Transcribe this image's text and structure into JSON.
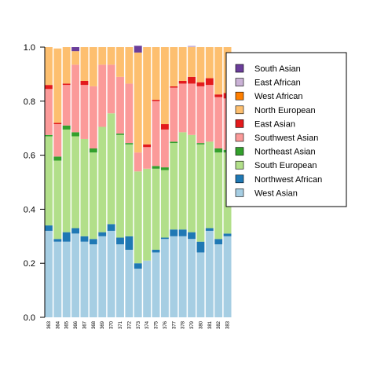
{
  "chart_data": {
    "type": "bar",
    "stacked": true,
    "title": "",
    "xlabel": "",
    "ylabel": "",
    "ylim": [
      0,
      1
    ],
    "yticks": [
      "0.0",
      "0.2",
      "0.4",
      "0.6",
      "0.8",
      "1.0"
    ],
    "grid": false,
    "legend_position": "right",
    "categories": [
      "363",
      "364",
      "365",
      "366",
      "367",
      "368",
      "369",
      "370",
      "371",
      "372",
      "373",
      "374",
      "375",
      "376",
      "377",
      "378",
      "379",
      "380",
      "381",
      "382",
      "383"
    ],
    "series": [
      {
        "name": "West Asian",
        "color": "#a6cee3",
        "values": [
          0.32,
          0.28,
          0.28,
          0.31,
          0.28,
          0.27,
          0.3,
          0.32,
          0.27,
          0.25,
          0.18,
          0.21,
          0.24,
          0.29,
          0.3,
          0.3,
          0.29,
          0.24,
          0.32,
          0.27,
          0.3
        ]
      },
      {
        "name": "Northwest African",
        "color": "#1f78b4",
        "values": [
          0.02,
          0.01,
          0.035,
          0.02,
          0.02,
          0.02,
          0.015,
          0.025,
          0.025,
          0.05,
          0.02,
          0.0,
          0.01,
          0.005,
          0.025,
          0.025,
          0.025,
          0.04,
          0.01,
          0.02,
          0.01
        ]
      },
      {
        "name": "South European",
        "color": "#b2df8a",
        "values": [
          0.33,
          0.29,
          0.38,
          0.34,
          0.36,
          0.32,
          0.39,
          0.41,
          0.38,
          0.34,
          0.34,
          0.34,
          0.3,
          0.25,
          0.32,
          0.36,
          0.36,
          0.36,
          0.32,
          0.32,
          0.3
        ]
      },
      {
        "name": "Northeast Asian",
        "color": "#33a02c",
        "values": [
          0.005,
          0.015,
          0.015,
          0.015,
          0.0,
          0.015,
          0.0,
          0.0,
          0.005,
          0.005,
          0.0,
          0.0,
          0.01,
          0.01,
          0.005,
          0.0,
          0.0,
          0.005,
          0.0,
          0.015,
          0.01
        ]
      },
      {
        "name": "Southwest Asian",
        "color": "#fb9a99",
        "values": [
          0.17,
          0.12,
          0.15,
          0.25,
          0.2,
          0.23,
          0.23,
          0.18,
          0.21,
          0.22,
          0.07,
          0.08,
          0.24,
          0.14,
          0.2,
          0.18,
          0.19,
          0.21,
          0.21,
          0.19,
          0.19
        ]
      },
      {
        "name": "East Asian",
        "color": "#e31a1c",
        "values": [
          0.015,
          0.005,
          0.005,
          0.0,
          0.015,
          0.0,
          0.0,
          0.0,
          0.0,
          0.0,
          0.0,
          0.01,
          0.005,
          0.02,
          0.005,
          0.01,
          0.025,
          0.015,
          0.025,
          0.01,
          0.02
        ]
      },
      {
        "name": "North European",
        "color": "#fdbf6f",
        "values": [
          0.14,
          0.275,
          0.135,
          0.05,
          0.125,
          0.145,
          0.065,
          0.065,
          0.11,
          0.135,
          0.37,
          0.36,
          0.195,
          0.285,
          0.145,
          0.125,
          0.11,
          0.13,
          0.115,
          0.175,
          0.17
        ]
      },
      {
        "name": "West African",
        "color": "#ff7f00",
        "values": [
          0,
          0,
          0,
          0,
          0,
          0,
          0,
          0,
          0,
          0,
          0,
          0,
          0,
          0,
          0,
          0,
          0,
          0,
          0,
          0,
          0
        ]
      },
      {
        "name": "East African",
        "color": "#cab2d6",
        "values": [
          0,
          0,
          0,
          0,
          0,
          0,
          0,
          0,
          0,
          0,
          0,
          0,
          0,
          0,
          0,
          0,
          0.005,
          0,
          0,
          0,
          0
        ]
      },
      {
        "name": "South Asian",
        "color": "#6a3d9a",
        "values": [
          0,
          0,
          0,
          0.015,
          0,
          0,
          0,
          0,
          0,
          0,
          0.025,
          0,
          0,
          0,
          0,
          0,
          0,
          0,
          0,
          0,
          0
        ]
      }
    ],
    "legend_order": [
      "South Asian",
      "East African",
      "West African",
      "North European",
      "East Asian",
      "Southwest Asian",
      "Northeast Asian",
      "South European",
      "Northwest African",
      "West Asian"
    ]
  }
}
